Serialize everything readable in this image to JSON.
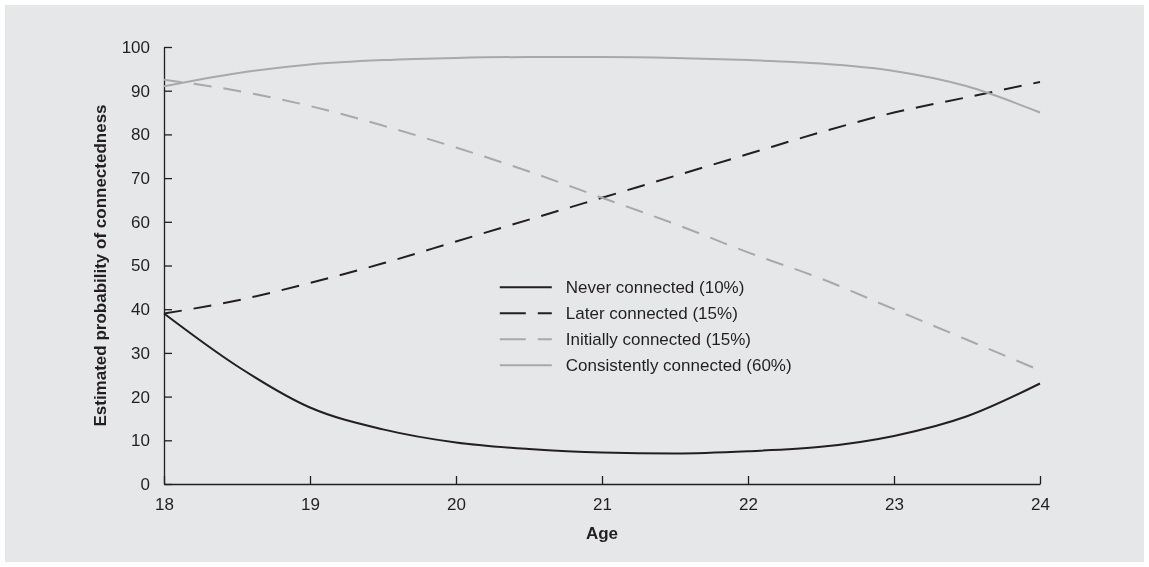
{
  "chart_data": {
    "type": "line",
    "xlabel": "Age",
    "ylabel": "Estimated probability of connectedness",
    "x": [
      18,
      18.5,
      19,
      19.5,
      20,
      20.5,
      21,
      21.5,
      22,
      22.5,
      23,
      23.5,
      24
    ],
    "xlim": [
      18,
      24
    ],
    "xticks": [
      18,
      19,
      20,
      21,
      22,
      23,
      24
    ],
    "ylim": [
      0,
      100
    ],
    "yticks": [
      0,
      10,
      20,
      30,
      40,
      50,
      60,
      70,
      80,
      90,
      100
    ],
    "grid": false,
    "legend": "center",
    "marker": "none",
    "series": [
      {
        "name": "Never connected (10%)",
        "color": "#231f20",
        "line_style": "solid",
        "values": [
          39,
          27,
          17.5,
          12.5,
          9.5,
          8,
          7.2,
          7,
          7.5,
          8.5,
          11,
          15.5,
          23
        ]
      },
      {
        "name": "Later connected (15%)",
        "color": "#231f20",
        "line_style": "dashed",
        "values": [
          39,
          42,
          46,
          50.5,
          55.5,
          60.5,
          65.5,
          70.5,
          75.5,
          80.5,
          85,
          88.5,
          92
        ]
      },
      {
        "name": "Initially connected (15%)",
        "color": "#a7a9ac",
        "line_style": "dashed",
        "values": [
          92.5,
          90,
          86.5,
          82,
          77,
          71.5,
          65.5,
          59.5,
          53,
          47,
          40,
          33,
          26
        ]
      },
      {
        "name": "Consistently connected (60%)",
        "color": "#a7a9ac",
        "line_style": "solid",
        "values": [
          91,
          94,
          96,
          97,
          97.5,
          97.7,
          97.7,
          97.5,
          97,
          96.2,
          94.5,
          91,
          85
        ]
      }
    ]
  }
}
